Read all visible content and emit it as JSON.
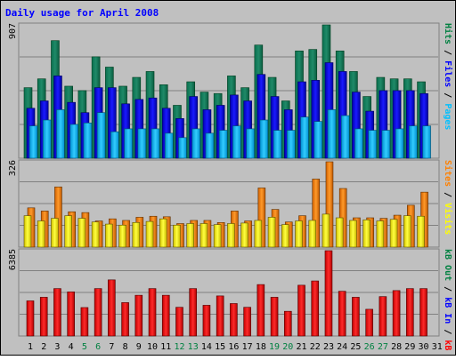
{
  "chart_data": [
    {
      "type": "bar",
      "title": "Daily usage for April 2008",
      "ymax_label": "907",
      "ylabel_parts": [
        {
          "text": "Pages",
          "color": "#00c0ff"
        },
        {
          "text": " / ",
          "color": "#000000"
        },
        {
          "text": "Files",
          "color": "#0000ff"
        },
        {
          "text": " / ",
          "color": "#000000"
        },
        {
          "text": "Hits",
          "color": "#008040"
        }
      ],
      "categories": [
        "1",
        "2",
        "3",
        "4",
        "5",
        "6",
        "7",
        "8",
        "9",
        "10",
        "11",
        "12",
        "13",
        "14",
        "15",
        "16",
        "17",
        "18",
        "19",
        "20",
        "21",
        "22",
        "23",
        "24",
        "25",
        "26",
        "27",
        "28",
        "29",
        "30",
        "31"
      ],
      "weekend_days": [
        "5",
        "6",
        "12",
        "13",
        "19",
        "20",
        "26",
        "27"
      ],
      "series": [
        {
          "name": "Hits",
          "color": "#008040",
          "values": [
            480,
            540,
            800,
            490,
            460,
            690,
            620,
            490,
            550,
            590,
            500,
            360,
            520,
            450,
            440,
            560,
            480,
            770,
            550,
            390,
            730,
            740,
            907,
            730,
            590,
            420,
            550,
            540,
            540,
            520,
            0
          ]
        },
        {
          "name": "Files",
          "color": "#0000ff",
          "values": [
            340,
            390,
            560,
            380,
            310,
            480,
            480,
            370,
            400,
            410,
            340,
            270,
            420,
            330,
            360,
            430,
            390,
            570,
            420,
            330,
            520,
            530,
            650,
            590,
            450,
            320,
            460,
            460,
            460,
            440,
            0
          ]
        },
        {
          "name": "Pages",
          "color": "#00c0ff",
          "values": [
            220,
            260,
            330,
            230,
            240,
            310,
            180,
            200,
            200,
            200,
            170,
            140,
            200,
            170,
            190,
            220,
            200,
            260,
            190,
            190,
            280,
            250,
            330,
            290,
            200,
            190,
            190,
            200,
            220,
            220,
            0
          ]
        }
      ]
    },
    {
      "type": "bar",
      "ymax_label": "326",
      "ylabel_parts": [
        {
          "text": "Visits",
          "color": "#ffff00"
        },
        {
          "text": " / ",
          "color": "#000000"
        },
        {
          "text": "Sites",
          "color": "#ff8000"
        }
      ],
      "categories": [
        "1",
        "2",
        "3",
        "4",
        "5",
        "6",
        "7",
        "8",
        "9",
        "10",
        "11",
        "12",
        "13",
        "14",
        "15",
        "16",
        "17",
        "18",
        "19",
        "20",
        "21",
        "22",
        "23",
        "24",
        "25",
        "26",
        "27",
        "28",
        "29",
        "30",
        "31"
      ],
      "series": [
        {
          "name": "Sites",
          "color": "#ff8000",
          "values": [
            150,
            138,
            230,
            135,
            132,
            100,
            108,
            102,
            114,
            118,
            116,
            90,
            102,
            102,
            94,
            138,
            100,
            226,
            144,
            96,
            120,
            260,
            326,
            224,
            112,
            112,
            110,
            122,
            160,
            210,
            0
          ]
        },
        {
          "name": "Visits",
          "color": "#ffff00",
          "values": [
            120,
            100,
            110,
            120,
            110,
            96,
            88,
            84,
            94,
            98,
            108,
            84,
            90,
            90,
            86,
            90,
            92,
            102,
            114,
            86,
            100,
            102,
            126,
            112,
            102,
            104,
            100,
            106,
            120,
            118,
            0
          ]
        }
      ]
    },
    {
      "type": "bar",
      "ymax_label": "6385",
      "ylabel_parts": [
        {
          "text": "kB F",
          "color": "#ff0000"
        },
        {
          "text": " / ",
          "color": "#000000"
        },
        {
          "text": "kB In",
          "color": "#0000ff"
        },
        {
          "text": " / ",
          "color": "#000000"
        },
        {
          "text": "kB Out",
          "color": "#008040"
        }
      ],
      "categories": [
        "1",
        "2",
        "3",
        "4",
        "5",
        "6",
        "7",
        "8",
        "9",
        "10",
        "11",
        "12",
        "13",
        "14",
        "15",
        "16",
        "17",
        "18",
        "19",
        "20",
        "21",
        "22",
        "23",
        "24",
        "25",
        "26",
        "27",
        "28",
        "29",
        "30",
        "31"
      ],
      "series": [
        {
          "name": "kB F",
          "color": "#ff0000",
          "values": [
            2630,
            2900,
            3550,
            3300,
            2130,
            3550,
            4200,
            2500,
            3050,
            3550,
            3050,
            2150,
            3550,
            2300,
            3000,
            2430,
            2150,
            3850,
            2900,
            1850,
            3800,
            4120,
            6385,
            3350,
            2900,
            2000,
            2950,
            3400,
            3550,
            3550,
            0
          ]
        }
      ]
    }
  ]
}
